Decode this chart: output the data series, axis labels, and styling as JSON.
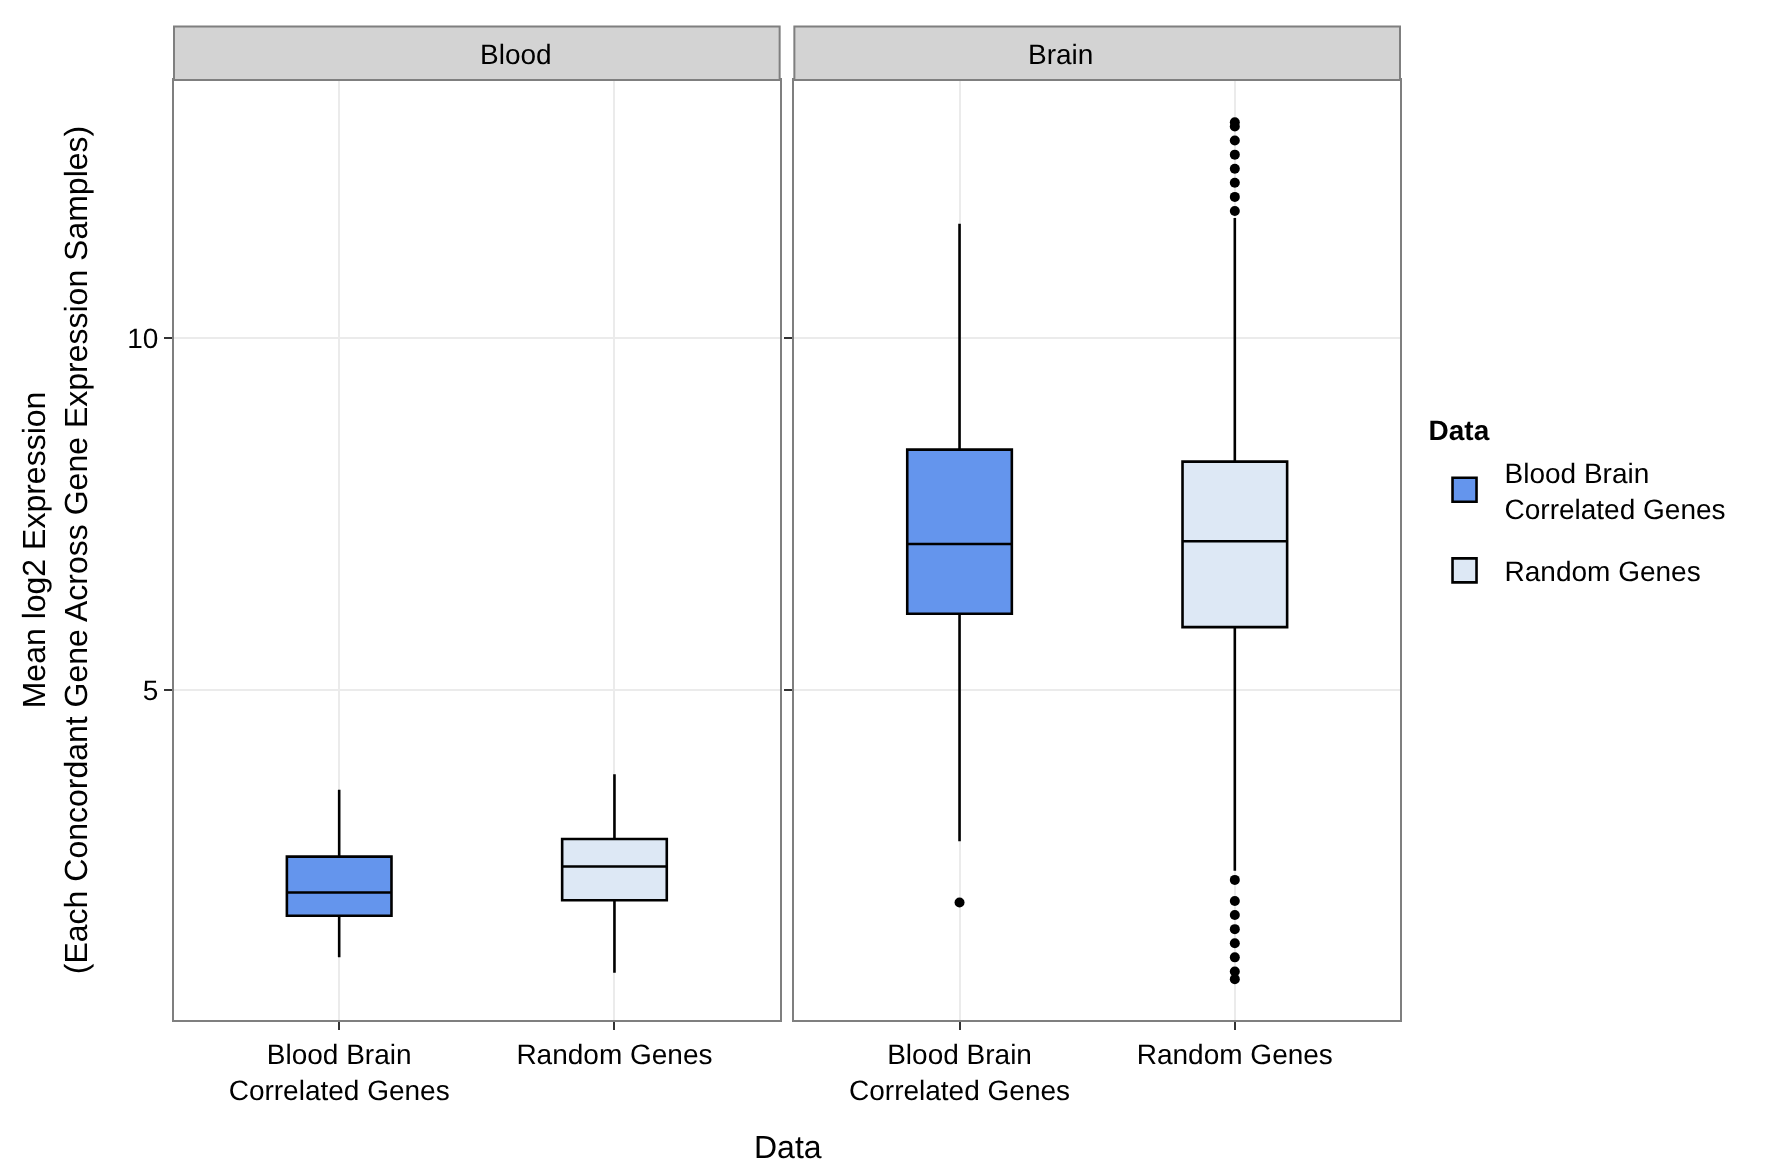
{
  "chart_data": [
    {
      "type": "box",
      "title": "Blood",
      "xlabel": "Data",
      "ylabel": "Mean log2 Expression\n(Each Concordant Gene Across Gene Expression Samples)",
      "legend_title": "Data",
      "legend": "right",
      "grid": true,
      "categories": [
        "Blood Brain\nCorrelated Genes",
        "Random Genes"
      ],
      "ylim": [
        0.31,
        13.66
      ],
      "yticks": [
        5,
        10
      ],
      "series": [
        {
          "name": "Blood Brain\nCorrelated Genes",
          "color": "#6495ed",
          "boxes": [
            {
              "low": 1.2,
              "q1": 1.79,
              "median": 2.12,
              "q3": 2.63,
              "high": 3.58
            },
            null
          ]
        },
        {
          "name": "Random Genes",
          "color": "#dde8f5",
          "boxes": [
            null,
            {
              "low": 0.98,
              "q1": 2.01,
              "median": 2.49,
              "q3": 2.88,
              "high": 3.8
            }
          ]
        }
      ]
    },
    {
      "type": "box",
      "title": "Brain",
      "grid": true,
      "tick_labels": "x",
      "categories": [
        "Blood Brain\nCorrelated Genes",
        "Random Genes"
      ],
      "ylim": [
        0.31,
        13.66
      ],
      "yticks": [
        5,
        10
      ],
      "series": [
        {
          "color": "#6495ed",
          "boxes": [
            {
              "low": 2.85,
              "q1": 6.08,
              "median": 7.07,
              "q3": 8.41,
              "high": 11.62,
              "outliers": [
                1.98
              ]
            },
            null
          ]
        },
        {
          "color": "#dde8f5",
          "boxes": [
            null,
            {
              "low": 2.43,
              "q1": 5.89,
              "median": 7.11,
              "q3": 8.24,
              "high": 11.7,
              "outliers": [
                0.89,
                1.0,
                1.2,
                1.4,
                1.6,
                1.8,
                2.0,
                2.3,
                11.8,
                12.0,
                12.2,
                12.4,
                12.6,
                12.8,
                13.0,
                13.06
              ]
            }
          ]
        }
      ]
    }
  ]
}
